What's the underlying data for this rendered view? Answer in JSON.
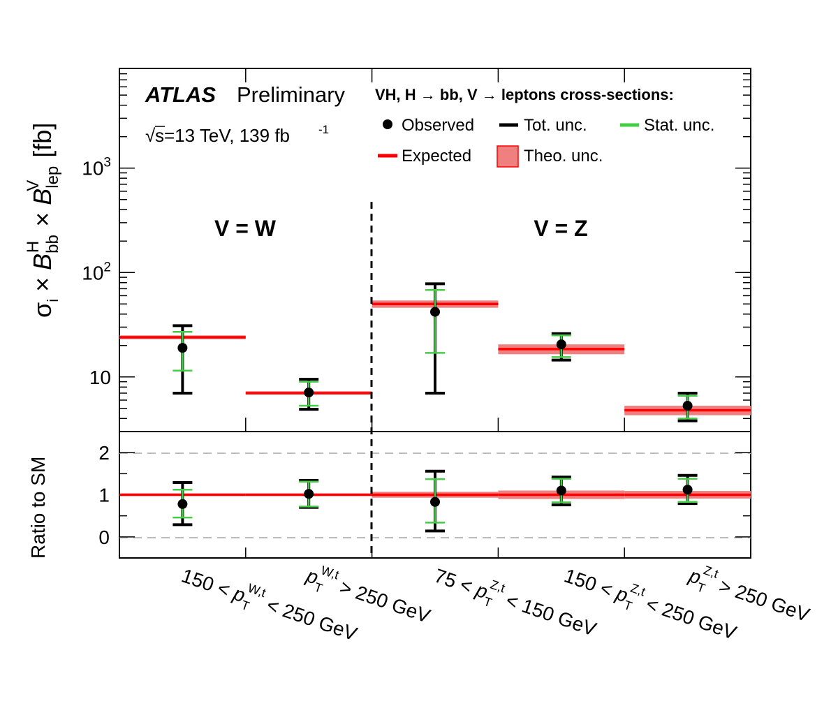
{
  "header": {
    "experiment": "ATLAS",
    "status": "Preliminary",
    "energy_lumi_prefix": "s=13 TeV, 139 fb",
    "energy_lumi_sup": "-1",
    "legend_title": "VH, H → bb, V → leptons cross-sections:"
  },
  "legend": {
    "observed": "Observed",
    "tot_unc": "Tot. unc.",
    "stat_unc": "Stat. unc.",
    "expected": "Expected",
    "theo_unc": "Theo. unc."
  },
  "regions": {
    "w_label": "V = W",
    "z_label": "V = Z"
  },
  "colors": {
    "expected": "#ff0000",
    "theo_band": "#f08080",
    "stat": "#44cc44",
    "tot": "#000000",
    "ref_line": "#bbbbbb"
  },
  "chart_data": [
    {
      "type": "scatter",
      "panel": "top",
      "yscale": "log",
      "ylim": [
        3,
        9000
      ],
      "ylabel": "σ_i × B^H_bb × B^V_lep [fb]",
      "ytick_labels": [
        "10",
        "10^2",
        "10^3"
      ],
      "categories": [
        "150 < p_T^{W,t} < 250 GeV",
        "p_T^{W,t} > 250 GeV",
        "75 < p_T^{Z,t} < 150 GeV",
        "150 < p_T^{Z,t} < 250 GeV",
        "p_T^{Z,t} > 250 GeV"
      ],
      "series": [
        {
          "name": "Observed",
          "values": [
            19,
            7.1,
            42,
            20.5,
            5.3
          ]
        },
        {
          "name": "Tot. unc.",
          "low": [
            7.0,
            4.9,
            7.0,
            14.5,
            3.8
          ],
          "high": [
            31,
            9.5,
            78,
            26,
            7.0
          ]
        },
        {
          "name": "Stat. unc.",
          "low": [
            11.5,
            5.3,
            17,
            15.5,
            4.0
          ],
          "high": [
            27,
            9.0,
            68,
            25,
            6.6
          ]
        },
        {
          "name": "Expected",
          "values": [
            24,
            7.0,
            50,
            18.5,
            4.8
          ]
        },
        {
          "name": "Theo. unc.",
          "low": [
            23,
            6.8,
            46,
            16.5,
            4.3
          ],
          "high": [
            25,
            7.3,
            54,
            20.5,
            5.3
          ]
        }
      ]
    },
    {
      "type": "scatter",
      "panel": "bottom",
      "ylim": [
        -0.5,
        2.5
      ],
      "ylabel": "Ratio to SM",
      "ytick_labels": [
        "0",
        "1",
        "2"
      ],
      "reference_lines": [
        0,
        2
      ],
      "categories": [
        "150 < p_T^{W,t} < 250 GeV",
        "p_T^{W,t} > 250 GeV",
        "75 < p_T^{Z,t} < 150 GeV",
        "150 < p_T^{Z,t} < 250 GeV",
        "p_T^{Z,t} > 250 GeV"
      ],
      "series": [
        {
          "name": "Observed",
          "values": [
            0.78,
            1.02,
            0.83,
            1.1,
            1.12
          ]
        },
        {
          "name": "Tot. unc.",
          "low": [
            0.29,
            0.7,
            0.14,
            0.76,
            0.79
          ],
          "high": [
            1.29,
            1.34,
            1.56,
            1.42,
            1.46
          ]
        },
        {
          "name": "Stat. unc.",
          "low": [
            0.46,
            0.72,
            0.34,
            0.82,
            0.83
          ],
          "high": [
            1.12,
            1.31,
            1.37,
            1.38,
            1.38
          ]
        },
        {
          "name": "Expected",
          "values": [
            1,
            1,
            1,
            1,
            1
          ]
        },
        {
          "name": "Theo. unc.",
          "low": [
            0.97,
            0.97,
            0.93,
            0.9,
            0.91
          ],
          "high": [
            1.03,
            1.03,
            1.07,
            1.1,
            1.09
          ]
        }
      ]
    }
  ]
}
